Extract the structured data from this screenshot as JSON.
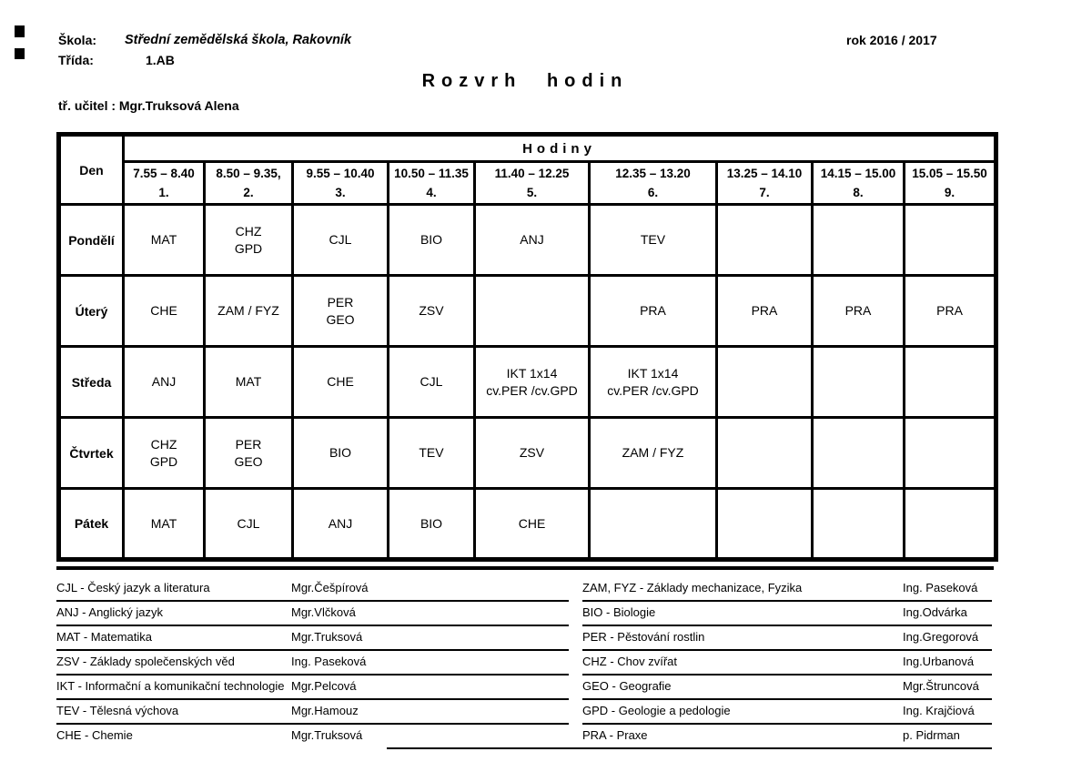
{
  "header": {
    "school_label": "Škola:",
    "school_value": "Střední zemědělská škola, Rakovník",
    "year": "rok 2016 / 2017",
    "class_label": "Třída:",
    "class_value": "1.AB",
    "title": "Rozvrh hodin",
    "teacher_line": "tř. učitel : Mgr.Truksová Alena"
  },
  "timetable": {
    "day_header": "Den",
    "hours_header": "Hodiny",
    "periods": [
      {
        "time": "7.55 – 8.40",
        "num": "1."
      },
      {
        "time": "8.50 – 9.35,",
        "num": "2."
      },
      {
        "time": "9.55 – 10.40",
        "num": "3."
      },
      {
        "time": "10.50 – 11.35",
        "num": "4."
      },
      {
        "time": "11.40 – 12.25",
        "num": "5."
      },
      {
        "time": "12.35 – 13.20",
        "num": "6."
      },
      {
        "time": "13.25 – 14.10",
        "num": "7."
      },
      {
        "time": "14.15 – 15.00",
        "num": "8."
      },
      {
        "time": "15.05 – 15.50",
        "num": "9."
      }
    ],
    "rows": [
      {
        "day": "Pondělí",
        "cells": [
          "MAT",
          "CHZ\nGPD",
          "CJL",
          "BIO",
          "ANJ",
          "TEV",
          "",
          "",
          ""
        ]
      },
      {
        "day": "Úterý",
        "cells": [
          "CHE",
          "ZAM / FYZ",
          "PER\nGEO",
          "ZSV",
          "",
          "PRA",
          "PRA",
          "PRA",
          "PRA"
        ]
      },
      {
        "day": "Středa",
        "cells": [
          "ANJ",
          "MAT",
          "CHE",
          "CJL",
          "IKT 1x14\ncv.PER /cv.GPD",
          "IKT 1x14\ncv.PER /cv.GPD",
          "",
          "",
          ""
        ]
      },
      {
        "day": "Čtvrtek",
        "cells": [
          "CHZ\nGPD",
          "PER\nGEO",
          "BIO",
          "TEV",
          "ZSV",
          "ZAM / FYZ",
          "",
          "",
          ""
        ]
      },
      {
        "day": "Pátek",
        "cells": [
          "MAT",
          "CJL",
          "ANJ",
          "BIO",
          "CHE",
          "",
          "",
          "",
          ""
        ]
      }
    ]
  },
  "legend": {
    "left": [
      {
        "label": "CJL - Český jazyk a literatura",
        "teacher": "Mgr.Češpírová",
        "underline": true
      },
      {
        "label": "ANJ - Anglický jazyk",
        "teacher": "Mgr.Vlčková",
        "underline": true
      },
      {
        "label": "MAT - Matematika",
        "teacher": "Mgr.Truksová",
        "underline": true
      },
      {
        "label": "ZSV - Základy společenských věd",
        "teacher": "Ing. Paseková",
        "underline": true
      },
      {
        "label": "IKT - Informační a komunikační technologie",
        "teacher": "Mgr.Pelcová",
        "underline": true
      },
      {
        "label": "TEV - Tělesná výchova",
        "teacher": "Mgr.Hamouz",
        "underline": true
      },
      {
        "label": "CHE - Chemie",
        "teacher": "Mgr.Truksová",
        "underline": false
      }
    ],
    "right": [
      {
        "label": "ZAM, FYZ - Základy mechanizace, Fyzika",
        "teacher": "Ing. Paseková",
        "underline": true
      },
      {
        "label": "BIO - Biologie",
        "teacher": "Ing.Odvárka",
        "underline": true
      },
      {
        "label": "PER - Pěstování rostlin",
        "teacher": "Ing.Gregorová",
        "underline": true
      },
      {
        "label": "CHZ - Chov zvířat",
        "teacher": "Ing.Urbanová",
        "underline": true
      },
      {
        "label": "GEO - Geografie",
        "teacher": "Mgr.Štruncová",
        "underline": true
      },
      {
        "label": "GPD - Geologie a pedologie",
        "teacher": "Ing. Krajčiová",
        "underline": true
      },
      {
        "label": "PRA - Praxe",
        "teacher": "p. Pidrman",
        "underline": true
      }
    ]
  },
  "colors": {
    "ink": "#000000",
    "paper": "#ffffff"
  }
}
